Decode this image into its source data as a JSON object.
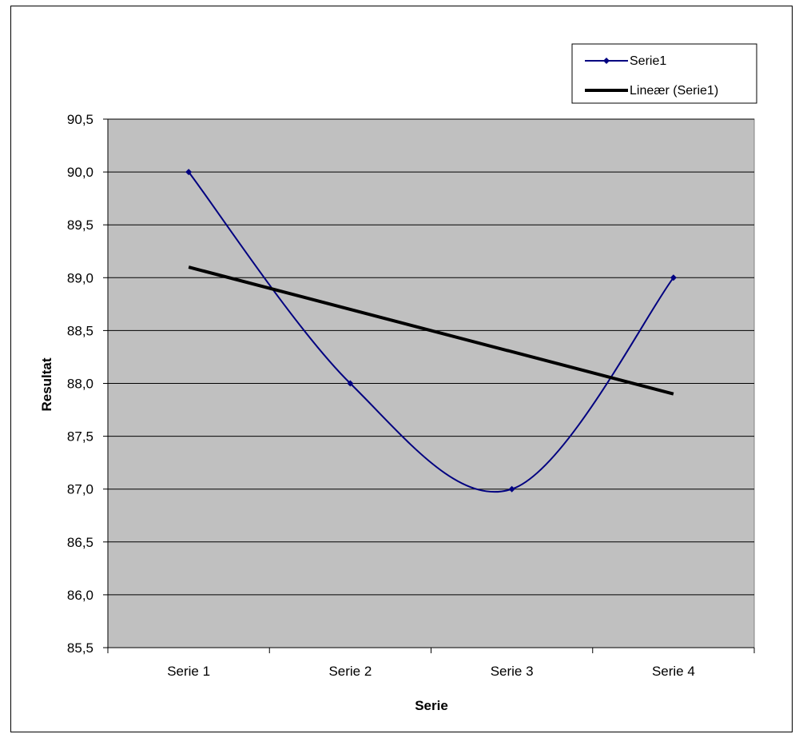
{
  "chart_data": {
    "type": "line",
    "categories": [
      "Serie 1",
      "Serie 2",
      "Serie 3",
      "Serie 4"
    ],
    "series": [
      {
        "name": "Serie1",
        "values": [
          90.0,
          88.0,
          87.0,
          89.0
        ],
        "color": "#000080",
        "smooth": true,
        "marker": "diamond"
      }
    ],
    "trendline": {
      "name": "Lineær (Serie1)",
      "type": "linear",
      "values": [
        89.1,
        88.7,
        88.3,
        87.9
      ],
      "color": "#000000"
    },
    "xlabel": "Serie",
    "ylabel": "Resultat",
    "ylim": [
      85.5,
      90.5
    ],
    "yticks": [
      "90,5",
      "90,0",
      "89,5",
      "89,0",
      "88,5",
      "88,0",
      "87,5",
      "87,0",
      "86,5",
      "86,0",
      "85,5"
    ],
    "ytick_values": [
      90.5,
      90.0,
      89.5,
      89.0,
      88.5,
      88.0,
      87.5,
      87.0,
      86.5,
      86.0,
      85.5
    ],
    "grid": true,
    "plot_background": "#c0c0c0",
    "legend_position": "top-right"
  }
}
